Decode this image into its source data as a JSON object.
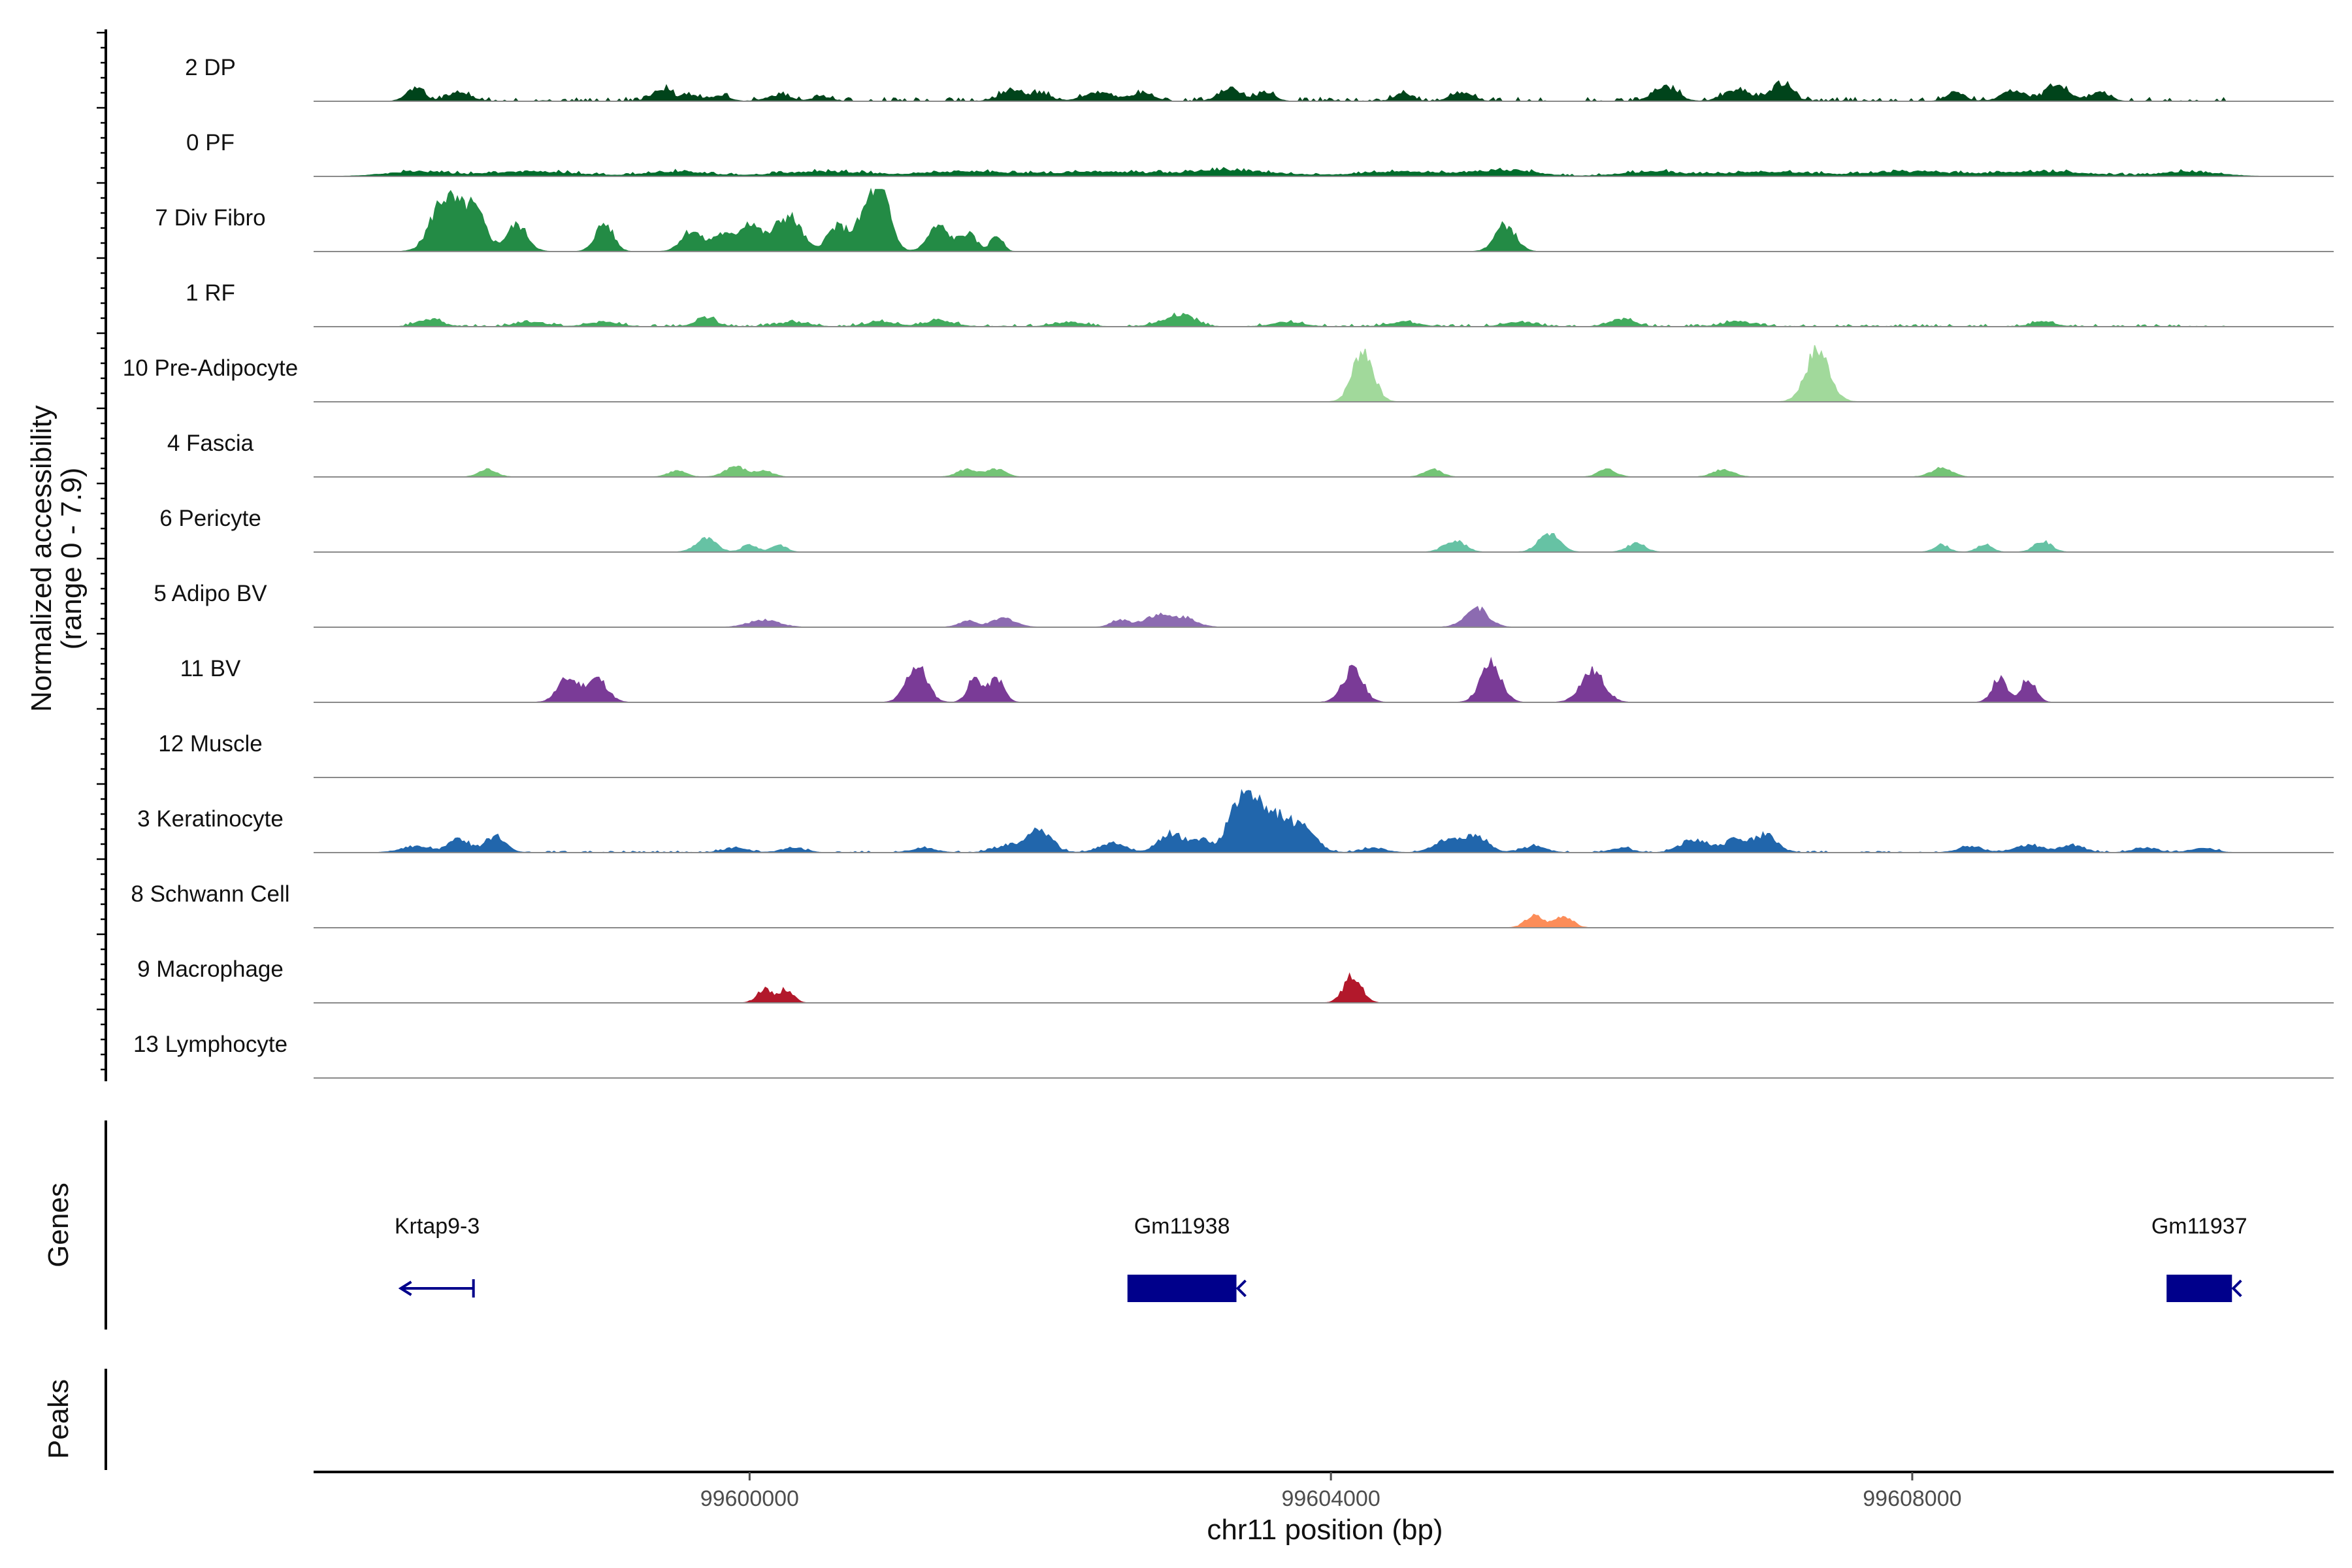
{
  "chart_data": {
    "type": "area",
    "title": "",
    "xlabel": "chr11 position (bp)",
    "ylabel": "Normalized accessibility",
    "ylabel_range": "(range 0 - 7.9)",
    "y_range": [
      0,
      7.9
    ],
    "xlim": [
      99597000,
      99610900
    ],
    "xticks": [
      99600000,
      99604000,
      99608000
    ],
    "xtick_labels": [
      "99600000",
      "99604000",
      "99608000"
    ],
    "panel_labels": {
      "genes": "Genes",
      "peaks": "Peaks"
    },
    "tracks": [
      {
        "name": "2 DP",
        "color": "#00441b",
        "peaks": [
          [
            99597700,
            0.9,
            60
          ],
          [
            99598000,
            0.5,
            80
          ],
          [
            99599400,
            0.8,
            70
          ],
          [
            99599600,
            0.4,
            60
          ],
          [
            99599800,
            0.4,
            60
          ],
          [
            99600200,
            0.4,
            80
          ],
          [
            99600500,
            0.3,
            60
          ],
          [
            99601800,
            0.7,
            80
          ],
          [
            99602000,
            0.5,
            70
          ],
          [
            99602400,
            0.6,
            100
          ],
          [
            99602700,
            0.5,
            80
          ],
          [
            99603300,
            0.9,
            70
          ],
          [
            99603550,
            0.6,
            60
          ],
          [
            99604500,
            0.5,
            60
          ],
          [
            99604900,
            0.6,
            70
          ],
          [
            99606300,
            1.0,
            80
          ],
          [
            99606800,
            0.8,
            90
          ],
          [
            99607100,
            1.2,
            70
          ],
          [
            99608300,
            0.6,
            60
          ],
          [
            99608700,
            0.7,
            80
          ],
          [
            99609000,
            1.0,
            80
          ],
          [
            99609300,
            0.6,
            60
          ]
        ],
        "base_noise": 0.25
      },
      {
        "name": "0 PF",
        "color": "#006d2c",
        "peaks": [
          [
            99597700,
            0.3,
            200
          ],
          [
            99598500,
            0.3,
            300
          ],
          [
            99599500,
            0.3,
            200
          ],
          [
            99600500,
            0.3,
            300
          ],
          [
            99601500,
            0.3,
            300
          ],
          [
            99602400,
            0.3,
            300
          ],
          [
            99603300,
            0.4,
            300
          ],
          [
            99604500,
            0.3,
            300
          ],
          [
            99605200,
            0.4,
            200
          ],
          [
            99606200,
            0.3,
            200
          ],
          [
            99607000,
            0.3,
            300
          ],
          [
            99608000,
            0.3,
            300
          ],
          [
            99608900,
            0.3,
            300
          ],
          [
            99609900,
            0.3,
            200
          ]
        ],
        "base_noise": 0.15
      },
      {
        "name": "7 Div Fibro",
        "color": "#238b45",
        "peaks": [
          [
            99597900,
            3.6,
            90
          ],
          [
            99598100,
            2.8,
            80
          ],
          [
            99598400,
            1.8,
            70
          ],
          [
            99599000,
            1.9,
            60
          ],
          [
            99599600,
            1.4,
            70
          ],
          [
            99599800,
            1.1,
            60
          ],
          [
            99600000,
            2.0,
            80
          ],
          [
            99600200,
            1.2,
            60
          ],
          [
            99600300,
            1.9,
            70
          ],
          [
            99600600,
            1.6,
            70
          ],
          [
            99600800,
            1.9,
            80
          ],
          [
            99600900,
            3.5,
            70
          ],
          [
            99601300,
            1.7,
            70
          ],
          [
            99601500,
            1.2,
            60
          ],
          [
            99601700,
            1.1,
            40
          ],
          [
            99605200,
            1.8,
            70
          ]
        ],
        "base_noise": 0.0
      },
      {
        "name": "1 RF",
        "color": "#41ab5d",
        "peaks": [
          [
            99597800,
            0.5,
            80
          ],
          [
            99598500,
            0.3,
            100
          ],
          [
            99599000,
            0.3,
            100
          ],
          [
            99599700,
            0.6,
            70
          ],
          [
            99600300,
            0.3,
            100
          ],
          [
            99600900,
            0.3,
            100
          ],
          [
            99601300,
            0.4,
            100
          ],
          [
            99602200,
            0.3,
            100
          ],
          [
            99602900,
            0.4,
            100
          ],
          [
            99603000,
            0.5,
            80
          ],
          [
            99603700,
            0.3,
            100
          ],
          [
            99604500,
            0.3,
            100
          ],
          [
            99605300,
            0.3,
            100
          ],
          [
            99606000,
            0.5,
            80
          ],
          [
            99606800,
            0.3,
            100
          ],
          [
            99608900,
            0.3,
            80
          ]
        ],
        "base_noise": 0.15
      },
      {
        "name": "10 Pre-Adipocyte",
        "color": "#a1d99b",
        "peaks": [
          [
            99604220,
            3.5,
            70
          ],
          [
            99607350,
            3.5,
            80
          ]
        ],
        "base_noise": 0.0
      },
      {
        "name": "4 Fascia",
        "color": "#74c476",
        "peaks": [
          [
            99598200,
            0.5,
            60
          ],
          [
            99599500,
            0.4,
            60
          ],
          [
            99599900,
            0.7,
            70
          ],
          [
            99600100,
            0.4,
            60
          ],
          [
            99601500,
            0.5,
            70
          ],
          [
            99601700,
            0.5,
            60
          ],
          [
            99604700,
            0.5,
            60
          ],
          [
            99605900,
            0.5,
            60
          ],
          [
            99606700,
            0.5,
            70
          ],
          [
            99608200,
            0.6,
            70
          ]
        ],
        "base_noise": 0.0
      },
      {
        "name": "6 Pericyte",
        "color": "#66c2a4",
        "peaks": [
          [
            99599700,
            0.9,
            70
          ],
          [
            99600000,
            0.5,
            50
          ],
          [
            99600200,
            0.5,
            50
          ],
          [
            99604850,
            0.8,
            70
          ],
          [
            99605500,
            1.3,
            70
          ],
          [
            99606100,
            0.6,
            60
          ],
          [
            99608200,
            0.5,
            50
          ],
          [
            99608500,
            0.5,
            50
          ],
          [
            99608900,
            0.7,
            60
          ]
        ],
        "base_noise": 0.0
      },
      {
        "name": "5 Adipo BV",
        "color": "#8c6bb1",
        "peaks": [
          [
            99600100,
            0.5,
            100
          ],
          [
            99601500,
            0.4,
            60
          ],
          [
            99601750,
            0.6,
            80
          ],
          [
            99602550,
            0.5,
            60
          ],
          [
            99602800,
            0.8,
            90
          ],
          [
            99603000,
            0.6,
            80
          ],
          [
            99605000,
            1.3,
            80
          ]
        ],
        "base_noise": 0.0
      },
      {
        "name": "11 BV",
        "color": "#7a3b97",
        "peaks": [
          [
            99598750,
            1.6,
            70
          ],
          [
            99598950,
            1.6,
            70
          ],
          [
            99601150,
            2.5,
            70
          ],
          [
            99601550,
            1.6,
            50
          ],
          [
            99601700,
            1.6,
            50
          ],
          [
            99604150,
            2.2,
            70
          ],
          [
            99605100,
            2.6,
            70
          ],
          [
            99605800,
            2.1,
            80
          ],
          [
            99608600,
            1.6,
            50
          ],
          [
            99608800,
            1.6,
            50
          ]
        ],
        "base_noise": 0.0
      },
      {
        "name": "12 Muscle",
        "color": "#6a51a3",
        "peaks": [],
        "base_noise": 0.0
      },
      {
        "name": "3 Keratinocyte",
        "color": "#2166ac",
        "peaks": [
          [
            99597700,
            0.4,
            100
          ],
          [
            99598000,
            0.9,
            70
          ],
          [
            99598250,
            1.1,
            70
          ],
          [
            99599900,
            0.3,
            80
          ],
          [
            99600300,
            0.3,
            80
          ],
          [
            99601200,
            0.3,
            80
          ],
          [
            99601800,
            0.5,
            100
          ],
          [
            99602000,
            1.4,
            80
          ],
          [
            99602500,
            0.6,
            90
          ],
          [
            99602900,
            1.3,
            80
          ],
          [
            99603100,
            0.8,
            70
          ],
          [
            99603400,
            4.2,
            90
          ],
          [
            99603600,
            2.2,
            90
          ],
          [
            99603800,
            1.8,
            90
          ],
          [
            99604300,
            0.3,
            80
          ],
          [
            99604800,
            0.8,
            90
          ],
          [
            99605000,
            1.1,
            80
          ],
          [
            99605400,
            0.4,
            80
          ],
          [
            99606000,
            0.3,
            70
          ],
          [
            99606500,
            0.9,
            90
          ],
          [
            99606800,
            0.9,
            90
          ],
          [
            99607000,
            1.1,
            70
          ],
          [
            99608400,
            0.4,
            80
          ],
          [
            99608800,
            0.5,
            90
          ],
          [
            99609100,
            0.5,
            80
          ],
          [
            99609600,
            0.3,
            80
          ],
          [
            99610000,
            0.3,
            80
          ]
        ],
        "base_noise": 0.1
      },
      {
        "name": "8 Schwann Cell",
        "color": "#fc8d59",
        "peaks": [
          [
            99605400,
            0.8,
            60
          ],
          [
            99605600,
            0.8,
            60
          ]
        ],
        "base_noise": 0.0
      },
      {
        "name": "9 Macrophage",
        "color": "#b2182b",
        "peaks": [
          [
            99600100,
            0.9,
            50
          ],
          [
            99600250,
            0.9,
            50
          ],
          [
            99604150,
            1.8,
            60
          ]
        ],
        "base_noise": 0.0
      },
      {
        "name": "13 Lymphocyte",
        "color": "#67001f",
        "peaks": [],
        "base_noise": 0.0
      }
    ],
    "genes": [
      {
        "name": "Krtap9-3",
        "start": 99597600,
        "end": 99598100,
        "strand": "-",
        "type": "intron-line",
        "color": "#00008b"
      },
      {
        "name": "Gm11938",
        "start": 99602600,
        "end": 99603350,
        "strand": "-",
        "type": "exon-box",
        "color": "#00008b"
      },
      {
        "name": "Gm11937",
        "start": 99609750,
        "end": 99610200,
        "strand": "-",
        "type": "exon-box",
        "color": "#00008b"
      }
    ]
  }
}
